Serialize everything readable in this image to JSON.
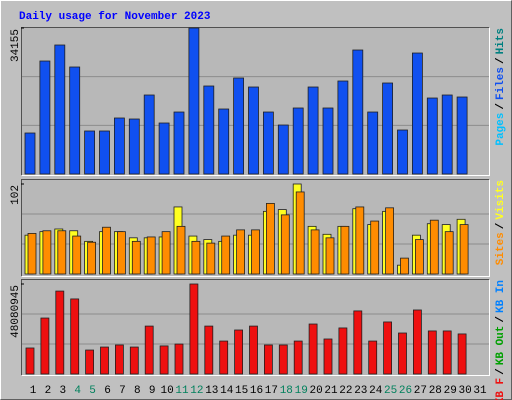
{
  "title": "Daily usage for November 2023",
  "chart_data": [
    {
      "type": "bar",
      "ylim": [
        0,
        34155
      ],
      "yticks": [
        34155
      ],
      "separator": "/",
      "series": [
        {
          "name": "Pages",
          "color": "#00c0ff"
        },
        {
          "name": "Files",
          "color": "#1050f0",
          "values": [
            9590,
            26430,
            30175,
            25030,
            10060,
            10060,
            13100,
            12865,
            18480,
            11930,
            14500,
            34155,
            20585,
            15205,
            22455,
            20350,
            14500,
            11460,
            15440,
            20350,
            15440,
            21755,
            29005,
            14500,
            21285,
            10290,
            28300,
            17775,
            18480,
            18010,
            null
          ]
        },
        {
          "name": "Hits",
          "color": "#008080"
        }
      ]
    },
    {
      "type": "bar",
      "ylim": [
        0,
        102
      ],
      "yticks": [
        102
      ],
      "separator": "/",
      "series": [
        {
          "name": "Sites",
          "color": "#ff8c00",
          "values": [
            46,
            49,
            49,
            43,
            36,
            53,
            48,
            37,
            42,
            48,
            54,
            37,
            35,
            43,
            50,
            50,
            80,
            67,
            93,
            50,
            41,
            54,
            76,
            60,
            75,
            18,
            39,
            61,
            48,
            56,
            null
          ]
        },
        {
          "name": "Visits",
          "color": "#ffff20",
          "values": [
            44,
            48,
            51,
            49,
            37,
            48,
            48,
            41,
            41,
            42,
            76,
            43,
            39,
            37,
            44,
            44,
            71,
            73,
            102,
            54,
            45,
            54,
            74,
            56,
            71,
            10,
            44,
            57,
            56,
            62,
            null
          ]
        }
      ]
    },
    {
      "type": "bar",
      "ylim": [
        0,
        48080945
      ],
      "yticks": [
        48080945
      ],
      "separator": "/",
      "categories": [
        "1",
        "2",
        "3",
        "4",
        "5",
        "6",
        "7",
        "8",
        "9",
        "10",
        "11",
        "12",
        "13",
        "14",
        "15",
        "16",
        "17",
        "18",
        "19",
        "20",
        "21",
        "22",
        "23",
        "24",
        "25",
        "26",
        "27",
        "28",
        "29",
        "30",
        "31"
      ],
      "label_colors": [
        "#000000",
        "#000000",
        "#000000",
        "#00805c",
        "#00805c",
        "#000000",
        "#000000",
        "#000000",
        "#000000",
        "#000000",
        "#00805c",
        "#00805c",
        "#000000",
        "#000000",
        "#000000",
        "#000000",
        "#000000",
        "#00805c",
        "#00805c",
        "#000000",
        "#000000",
        "#000000",
        "#000000",
        "#000000",
        "#00805c",
        "#00805c",
        "#000000",
        "#000000",
        "#000000",
        "#000000",
        "#000000"
      ],
      "series": [
        {
          "name": "KB F",
          "color": "#ee1010",
          "values": [
            13900000,
            29900000,
            44300000,
            40100000,
            12800000,
            14400000,
            15500000,
            14400000,
            25600000,
            15000000,
            16000000,
            48080945,
            25600000,
            17600000,
            23500000,
            25600000,
            15500000,
            15500000,
            17600000,
            26700000,
            18700000,
            24600000,
            33700000,
            17600000,
            27800000,
            21900000,
            34200000,
            23000000,
            23000000,
            21400000,
            null
          ]
        },
        {
          "name": "KB Out",
          "color": "#00a000"
        },
        {
          "name": "KB In",
          "color": "#0080ff"
        }
      ]
    }
  ]
}
